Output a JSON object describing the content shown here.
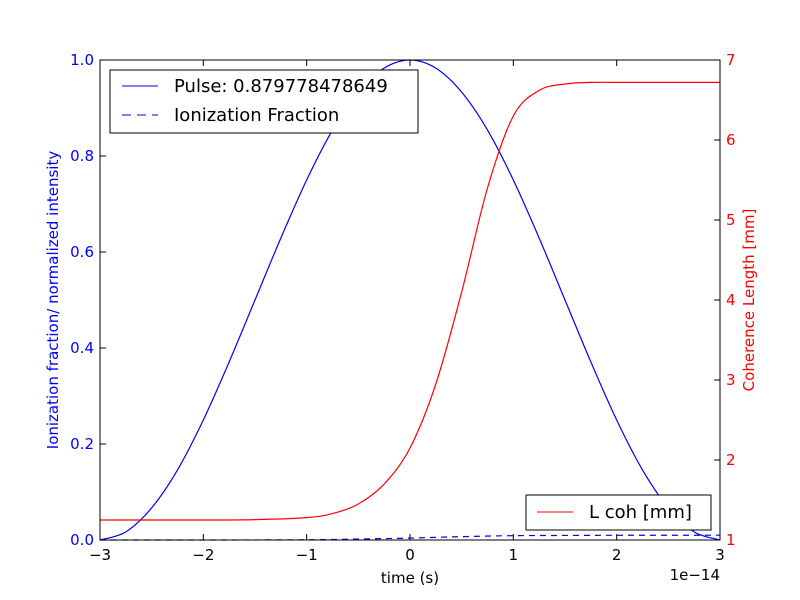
{
  "chart_data": {
    "type": "line",
    "xlabel": "time (s)",
    "x_offset_label": "1e−14",
    "x_scale": 1e-14,
    "xlim": [
      -3,
      3
    ],
    "x_ticks": [
      -3,
      -2,
      -1,
      0,
      1,
      2,
      3
    ],
    "x_tick_labels": [
      "−3",
      "−2",
      "−1",
      "0",
      "1",
      "2",
      "3"
    ],
    "left_axis": {
      "label": "Ionization fraction/ normalized intensity",
      "color": "#0000ff",
      "ylim": [
        0,
        1.0
      ],
      "ticks": [
        0.0,
        0.2,
        0.4,
        0.6,
        0.8,
        1.0
      ],
      "tick_labels": [
        "0.0",
        "0.2",
        "0.4",
        "0.6",
        "0.8",
        "1.0"
      ]
    },
    "right_axis": {
      "label": "Coherence Length [mm]",
      "color": "#ff0000",
      "ylim": [
        1,
        7
      ],
      "ticks": [
        1,
        2,
        3,
        4,
        5,
        6,
        7
      ],
      "tick_labels": [
        "1",
        "2",
        "3",
        "4",
        "5",
        "6",
        "7"
      ]
    },
    "series": [
      {
        "name": "Pulse: 0.879778478649",
        "axis": "left",
        "color": "#0000ff",
        "style": "solid",
        "x": [
          -3.0,
          -2.75,
          -2.5,
          -2.25,
          -2.0,
          -1.75,
          -1.5,
          -1.25,
          -1.0,
          -0.75,
          -0.5,
          -0.25,
          0.0,
          0.25,
          0.5,
          0.75,
          1.0,
          1.25,
          1.5,
          1.75,
          2.0,
          2.25,
          2.5,
          2.75,
          3.0
        ],
        "y": [
          0.0,
          0.017,
          0.067,
          0.146,
          0.25,
          0.371,
          0.5,
          0.629,
          0.75,
          0.854,
          0.933,
          0.983,
          1.0,
          0.983,
          0.933,
          0.854,
          0.75,
          0.629,
          0.5,
          0.371,
          0.25,
          0.146,
          0.067,
          0.017,
          0.0
        ]
      },
      {
        "name": "Ionization Fraction",
        "axis": "left",
        "color": "#0000ff",
        "style": "dashed",
        "x": [
          -3.0,
          -2.0,
          -1.0,
          -0.5,
          0.0,
          0.5,
          1.0,
          1.5,
          2.0,
          2.5,
          3.0
        ],
        "y": [
          0.0,
          0.0,
          0.0005,
          0.002,
          0.004,
          0.007,
          0.009,
          0.0095,
          0.0098,
          0.0099,
          0.01
        ]
      },
      {
        "name": "L coh [mm]",
        "axis": "right",
        "color": "#ff0000",
        "style": "solid",
        "x": [
          -3.0,
          -2.5,
          -2.0,
          -1.5,
          -1.0,
          -0.75,
          -0.5,
          -0.25,
          0.0,
          0.25,
          0.5,
          0.75,
          1.0,
          1.25,
          1.5,
          1.75,
          2.0,
          2.5,
          3.0
        ],
        "y": [
          1.25,
          1.25,
          1.25,
          1.255,
          1.28,
          1.33,
          1.45,
          1.7,
          2.15,
          2.95,
          4.1,
          5.4,
          6.3,
          6.62,
          6.7,
          6.72,
          6.72,
          6.72,
          6.72
        ]
      }
    ],
    "legends": [
      {
        "placement": "upper-left",
        "entries": [
          "Pulse: 0.879778478649",
          "Ionization Fraction"
        ]
      },
      {
        "placement": "lower-right",
        "entries": [
          "L coh [mm]"
        ]
      }
    ]
  }
}
